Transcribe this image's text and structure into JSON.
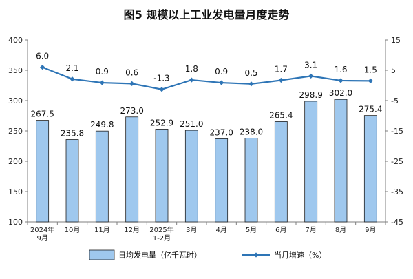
{
  "chart_data": {
    "type": "bar+line",
    "title": "图5  规模以上工业发电量月度走势",
    "categories": [
      "2024年\n9月",
      "10月",
      "11月",
      "12月",
      "2025年\n1-2月",
      "3月",
      "4月",
      "5月",
      "6月",
      "7月",
      "8月",
      "9月"
    ],
    "series": [
      {
        "name": "日均发电量（亿千瓦时）",
        "type": "bar",
        "axis": "left",
        "color": "#9FC8EE",
        "values": [
          267.5,
          235.8,
          249.8,
          273.0,
          252.9,
          251.0,
          237.0,
          238.0,
          265.4,
          298.9,
          302.0,
          275.4
        ],
        "labels": [
          "267.5",
          "235.8",
          "249.8",
          "273.0",
          "252.9",
          "251.0",
          "237.0",
          "238.0",
          "265.4",
          "298.9",
          "302.0",
          "275.4"
        ]
      },
      {
        "name": "当月增速（%）",
        "type": "line",
        "axis": "right",
        "color": "#2E75B6",
        "values": [
          6.0,
          2.1,
          0.9,
          0.6,
          -1.3,
          1.8,
          0.9,
          0.5,
          1.7,
          3.1,
          1.6,
          1.5
        ],
        "labels": [
          "6.0",
          "2.1",
          "0.9",
          "0.6",
          "-1.3",
          "1.8",
          "0.9",
          "0.5",
          "1.7",
          "3.1",
          "1.6",
          "1.5"
        ]
      }
    ],
    "y_left": {
      "min": 100,
      "max": 400,
      "ticks": [
        100,
        150,
        200,
        250,
        300,
        350,
        400
      ]
    },
    "y_right": {
      "min": -45,
      "max": 15,
      "ticks": [
        -45,
        -35,
        -25,
        -15,
        -5,
        5,
        15
      ]
    },
    "grid": false,
    "legend_position": "bottom",
    "colors": {
      "bar_fill": "#9FC8EE",
      "bar_stroke": "#1F1F1F",
      "line": "#2E75B6",
      "axis": "#7F7F7F"
    }
  }
}
